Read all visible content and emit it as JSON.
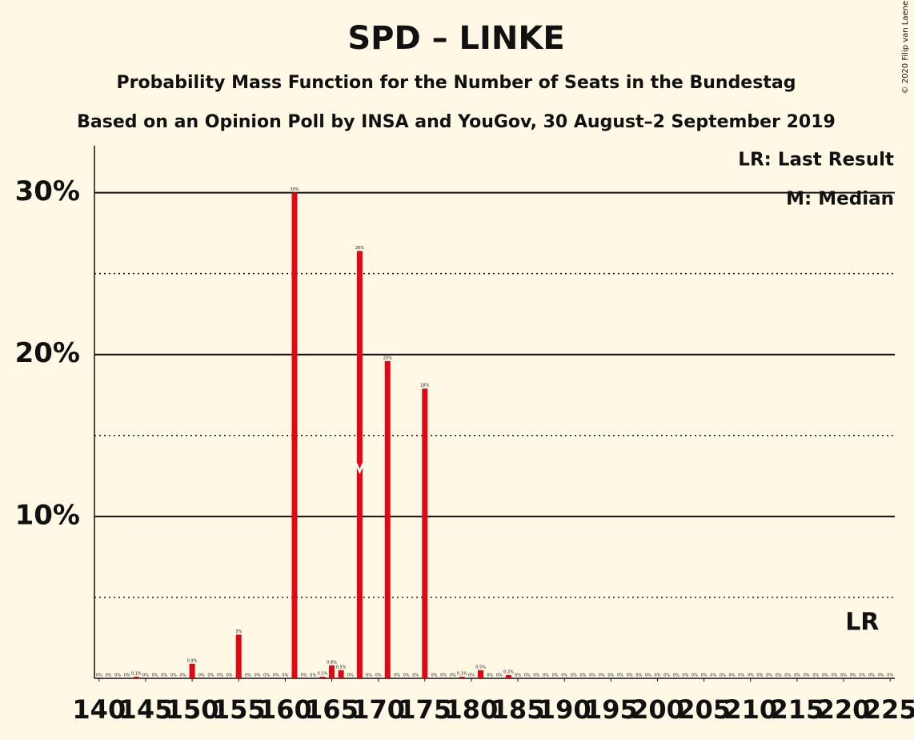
{
  "chart_data": {
    "type": "bar",
    "title": "SPD – LINKE",
    "subtitle": "Probability Mass Function for the Number of Seats in the Bundestag",
    "subtitle2": "Based on an Opinion Poll by INSA and YouGov, 30 August–2 September 2019",
    "copyright": "© 2020 Filip van Laenen",
    "legend": [
      "LR: Last Result",
      "M: Median"
    ],
    "color": "#e30613",
    "x": [
      140,
      141,
      142,
      143,
      144,
      145,
      146,
      147,
      148,
      149,
      150,
      151,
      152,
      153,
      154,
      155,
      156,
      157,
      158,
      159,
      160,
      161,
      162,
      163,
      164,
      165,
      166,
      167,
      168,
      169,
      170,
      171,
      172,
      173,
      174,
      175,
      176,
      177,
      178,
      179,
      180,
      181,
      182,
      183,
      184,
      185,
      186,
      187,
      188,
      189,
      190,
      191,
      192,
      193,
      194,
      195,
      196,
      197,
      198,
      199,
      200,
      201,
      202,
      203,
      204,
      205,
      206,
      207,
      208,
      209,
      210,
      211,
      212,
      213,
      214,
      215,
      216,
      217,
      218,
      219,
      220,
      221,
      222,
      223,
      224,
      225
    ],
    "values": [
      0,
      0,
      0,
      0,
      0.1,
      0,
      0,
      0,
      0,
      0,
      0.9,
      0,
      0,
      0,
      0,
      2.7,
      0,
      0,
      0,
      0,
      0,
      30,
      0,
      0,
      0.1,
      0.8,
      0.5,
      0,
      26.4,
      0,
      0,
      19.6,
      0,
      0,
      0,
      17.9,
      0,
      0,
      0,
      0.1,
      0,
      0.5,
      0,
      0,
      0.2,
      0,
      0,
      0,
      0,
      0,
      0,
      0,
      0,
      0,
      0,
      0,
      0,
      0,
      0,
      0,
      0,
      0,
      0,
      0,
      0,
      0,
      0,
      0,
      0,
      0,
      0,
      0,
      0,
      0,
      0,
      0,
      0,
      0,
      0,
      0,
      0,
      0,
      0,
      0,
      0,
      0
    ],
    "value_labels": [
      "0%",
      "0%",
      "0%",
      "0%",
      "0.1%",
      "0%",
      "0%",
      "0%",
      "0%",
      "0%",
      "0.9%",
      "0%",
      "0%",
      "0%",
      "0%",
      "3%",
      "0%",
      "0%",
      "0%",
      "0%",
      "0%",
      "30%",
      "0%",
      "0%",
      "0.1%",
      "0.8%",
      "0.5%",
      "0%",
      "26%",
      "0%",
      "0%",
      "20%",
      "0%",
      "0%",
      "0%",
      "18%",
      "0%",
      "0%",
      "0%",
      "0.1%",
      "0%",
      "0.5%",
      "0%",
      "0%",
      "0.2%",
      "0%",
      "0%",
      "0%",
      "0%",
      "0%",
      "0%",
      "0%",
      "0%",
      "0%",
      "0%",
      "0%",
      "0%",
      "0%",
      "0%",
      "0%",
      "0%",
      "0%",
      "0%",
      "0%",
      "0%",
      "0%",
      "0%",
      "0%",
      "0%",
      "0%",
      "0%",
      "0%",
      "0%",
      "0%",
      "0%",
      "0%",
      "0%",
      "0%",
      "0%",
      "0%",
      "0%",
      "0%",
      "0%",
      "0%",
      "0%",
      "0%"
    ],
    "median": 168,
    "median_label": "M",
    "last_result": 222,
    "last_result_label": "LR",
    "xlim": [
      139.5,
      225.5
    ],
    "xticks": [
      140,
      145,
      150,
      155,
      160,
      165,
      170,
      175,
      180,
      185,
      190,
      195,
      200,
      205,
      210,
      215,
      220,
      225
    ],
    "ylim": [
      0,
      32.9
    ],
    "yticks": [
      {
        "value": 10,
        "label": "10%"
      },
      {
        "value": 20,
        "label": "20%"
      },
      {
        "value": 30,
        "label": "30%"
      }
    ],
    "minor_yticks": [
      5,
      15,
      25
    ],
    "grid": true
  }
}
